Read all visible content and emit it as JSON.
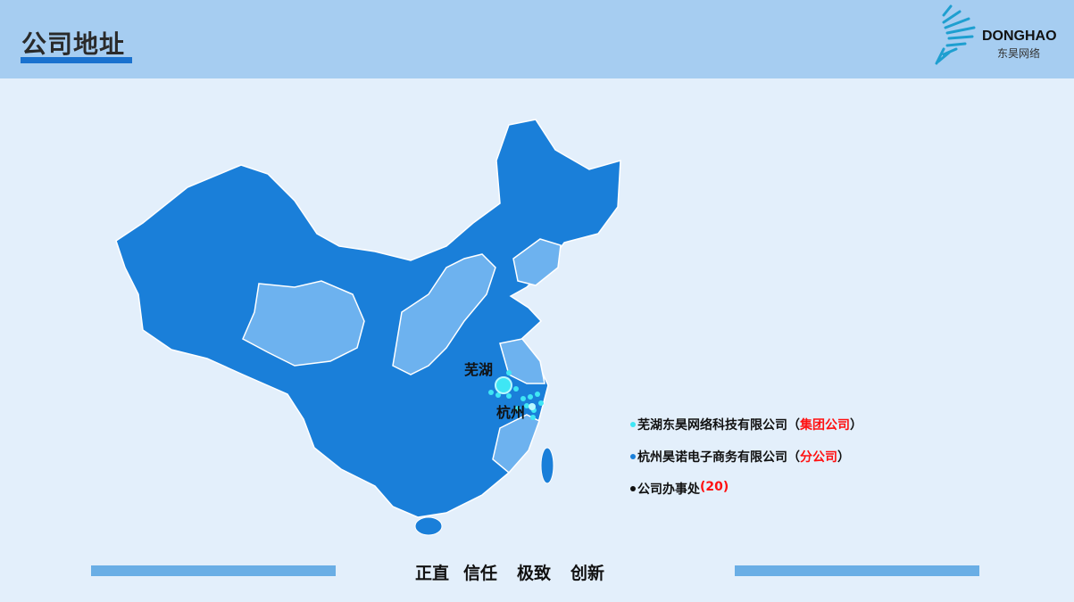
{
  "header": {
    "title": "公司地址",
    "logo": {
      "en": "DONGHAO",
      "cn": "东昊网络"
    }
  },
  "map": {
    "cities": [
      {
        "name": "芜湖"
      },
      {
        "name": "杭州"
      }
    ],
    "colors": {
      "province_dark": "#1a7fd9",
      "province_light": "#6db2ef",
      "marker": "#3fe6f5"
    }
  },
  "legend": [
    {
      "text": "芜湖东昊网络科技有限公司（",
      "highlight": "集团公司",
      "suffix": "）",
      "dot_color": "#3fe6f5"
    },
    {
      "text": "杭州昊诺电子商务有限公司（",
      "highlight": "分公司",
      "suffix": "）",
      "dot_color": "#1a7fd9"
    },
    {
      "text": "公司办事处",
      "highlight": "(20)",
      "suffix": "",
      "dot_color": "#111111"
    }
  ],
  "footer": {
    "motto": [
      "正直",
      "信任",
      "极致",
      "创新"
    ]
  }
}
